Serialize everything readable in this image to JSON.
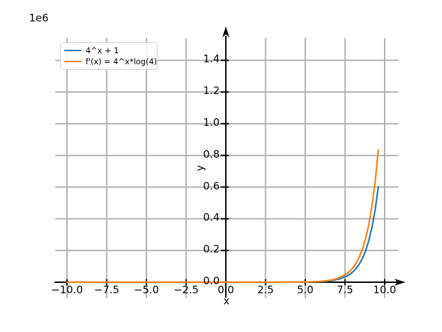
{
  "chart_data": {
    "type": "line",
    "title": "",
    "xlabel": "x",
    "ylabel": "y",
    "offset_text": "1e6",
    "grid": true,
    "legend_position": "upper left",
    "xlim": [
      -10.8,
      10.9
    ],
    "ylim": [
      -100000,
      1540000
    ],
    "x_tick_values": [
      -10,
      -7.5,
      -5,
      -2.5,
      0,
      2.5,
      5,
      7.5,
      10
    ],
    "x_tick_labels": [
      "−10.0",
      "−7.5",
      "−5.0",
      "−2.5",
      "0.0",
      "2.5",
      "5.0",
      "7.5",
      "10.0"
    ],
    "y_tick_values": [
      0,
      200000,
      400000,
      600000,
      800000,
      1000000,
      1200000,
      1400000
    ],
    "y_tick_labels": [
      "0.0",
      "0.2",
      "0.4",
      "0.6",
      "0.8",
      "1.0",
      "1.2",
      "1.4"
    ],
    "colors": {
      "axis": "#000000",
      "grid": "#b0b0b0",
      "series1": "#1f77b4",
      "series2": "#ff7f0e"
    },
    "x": [
      -10,
      -8,
      -6,
      -4,
      -2,
      0,
      1,
      2,
      3,
      4,
      4.5,
      5,
      5.5,
      6,
      6.4,
      6.8,
      7.2,
      7.6,
      7.8,
      8,
      8.2,
      8.4,
      8.6,
      8.8,
      9,
      9.2,
      9.4,
      9.6
    ],
    "series": [
      {
        "name": "4^x + 1",
        "color": "#1f77b4",
        "y": [
          1,
          1,
          1,
          1,
          1,
          2,
          5,
          17,
          65,
          257,
          513,
          1025,
          2049,
          4097,
          7133,
          12418,
          21620,
          37642,
          49664,
          65537,
          86481,
          114106,
          150567,
          198670,
          262145,
          345924,
          456420,
          602250
        ]
      },
      {
        "name": "f'(x) = 4^x*log(4)",
        "color": "#ff7f0e",
        "y": [
          0,
          0,
          0,
          0,
          0.2,
          1.4,
          5.5,
          22,
          89,
          355,
          710,
          1420,
          2839,
          5679,
          9887,
          17214,
          29969,
          52181,
          68849,
          90852,
          119891,
          158187,
          208734,
          275422,
          363409,
          479552,
          632733,
          834892
        ]
      }
    ]
  }
}
